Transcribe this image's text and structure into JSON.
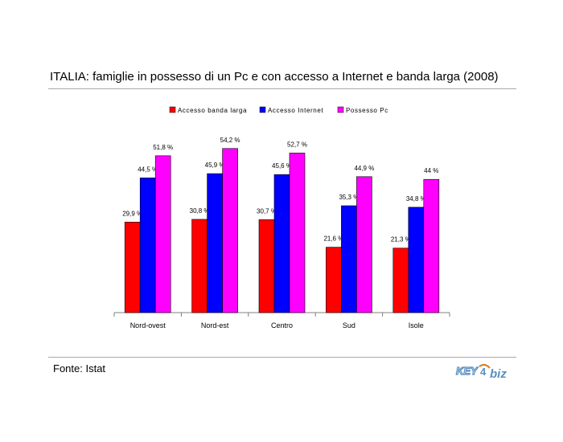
{
  "page": {
    "title": "ITALIA: famiglie in possesso di un Pc e con accesso a Internet e banda larga (2008)",
    "source": "Fonte: Istat",
    "logo_text": "KEY4biz"
  },
  "colors": {
    "rule": "#a8a8a8",
    "axis": "#808080",
    "logo_blue": "#5a8fc0",
    "logo_orange": "#e07a1f"
  },
  "chart_data": {
    "type": "bar",
    "title": "",
    "xlabel": "",
    "ylabel": "",
    "ylim": [
      0,
      60
    ],
    "grid": false,
    "legend_position": "top",
    "categories": [
      "Nord-ovest",
      "Nord-est",
      "Centro",
      "Sud",
      "Isole"
    ],
    "series": [
      {
        "name": "Accesso banda larga",
        "color": "#ff0000",
        "values": [
          29.9,
          30.8,
          30.7,
          21.6,
          21.3
        ],
        "labels": [
          "29,9 %",
          "30,8 %",
          "30,7 %",
          "21,6 %",
          "21,3 %"
        ]
      },
      {
        "name": "Accesso Internet",
        "color": "#0000ff",
        "values": [
          44.5,
          45.9,
          45.6,
          35.3,
          34.8
        ],
        "labels": [
          "44,5 %",
          "45,9 %",
          "45,6 %",
          "35,3 %",
          "34,8 %"
        ]
      },
      {
        "name": "Possesso Pc",
        "color": "#ff00ff",
        "values": [
          51.8,
          54.2,
          52.7,
          44.9,
          44.0
        ],
        "labels": [
          "51,8 %",
          "54,2 %",
          "52,7 %",
          "44,9 %",
          "44 %"
        ]
      }
    ]
  }
}
